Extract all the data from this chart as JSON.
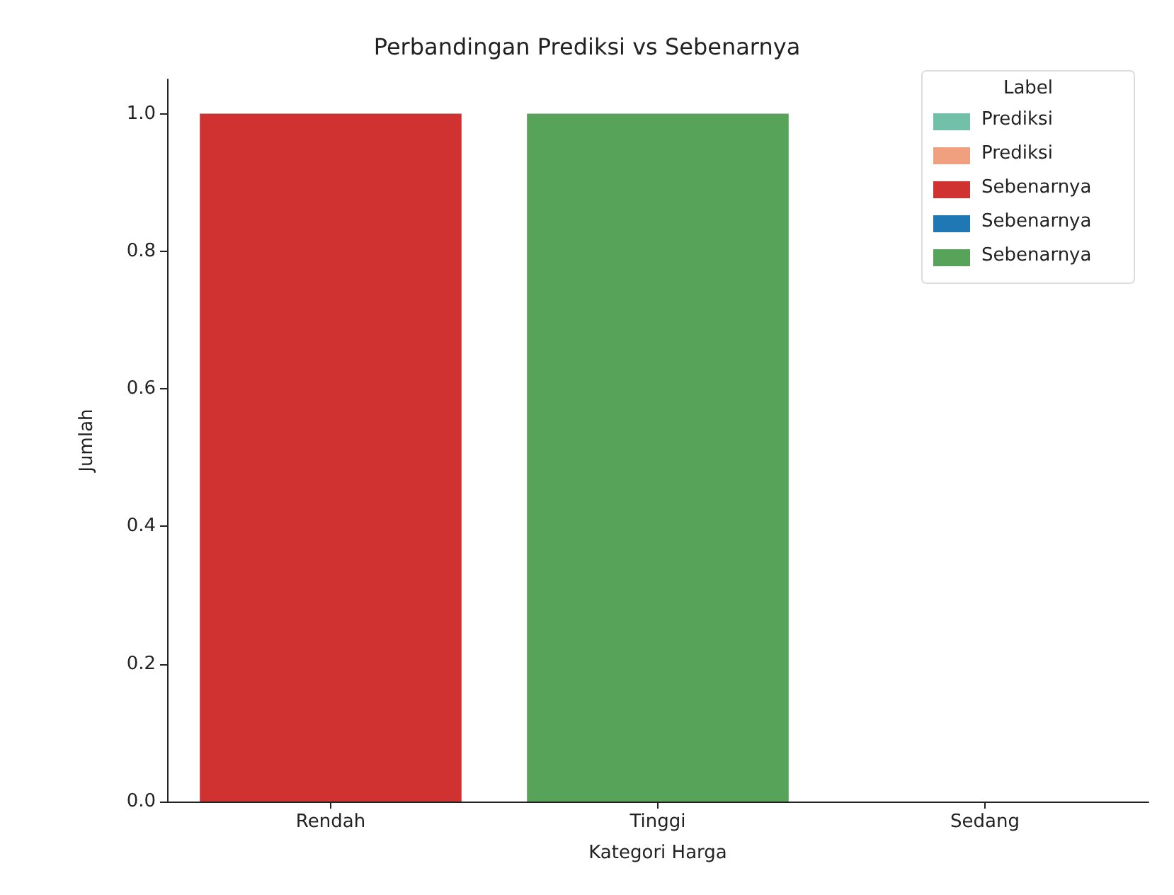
{
  "chart_data": {
    "type": "bar",
    "title": "Perbandingan Prediksi vs Sebenarnya",
    "xlabel": "Kategori Harga",
    "ylabel": "Jumlah",
    "legend_title": "Label",
    "categories": [
      "Rendah",
      "Tinggi",
      "Sedang"
    ],
    "series": [
      {
        "name": "Prediksi",
        "color": "#72c0a8",
        "values": [
          null,
          null,
          null
        ]
      },
      {
        "name": "Prediksi",
        "color": "#f0a07f",
        "values": [
          null,
          null,
          null
        ]
      },
      {
        "name": "Sebenarnya",
        "color": "#d03232",
        "values": [
          1,
          null,
          null
        ]
      },
      {
        "name": "Sebenarnya",
        "color": "#1f77b4",
        "values": [
          null,
          null,
          null
        ]
      },
      {
        "name": "Sebenarnya",
        "color": "#58a35a",
        "values": [
          null,
          1,
          null
        ]
      }
    ],
    "ylim": [
      0,
      1.05
    ],
    "yticks": [
      {
        "value": 0,
        "label": "0.0"
      },
      {
        "value": 0.2,
        "label": "0.2"
      },
      {
        "value": 0.4,
        "label": "0.4"
      },
      {
        "value": 0.6,
        "label": "0.6"
      },
      {
        "value": 0.8,
        "label": "0.8"
      },
      {
        "value": 1,
        "label": "1.0"
      }
    ],
    "grid": false,
    "legend": "top right"
  }
}
